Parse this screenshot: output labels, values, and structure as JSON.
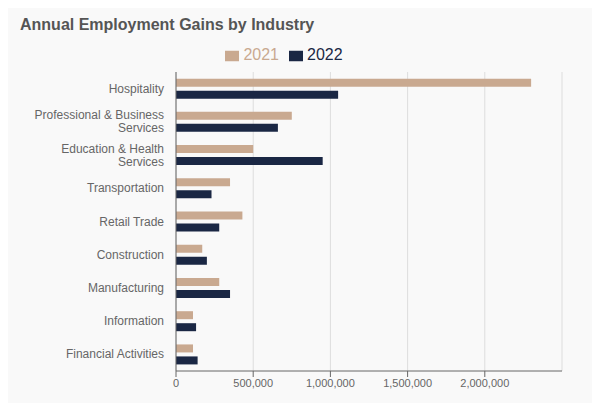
{
  "chart_data": {
    "type": "bar",
    "orientation": "horizontal",
    "title": "Annual Employment Gains by Industry",
    "categories": [
      "Hospitality",
      "Professional & Business\nServices",
      "Education & Health\nServices",
      "Transportation",
      "Retail Trade",
      "Construction",
      "Manufacturing",
      "Information",
      "Financial Activities"
    ],
    "series": [
      {
        "name": "2021",
        "color": "#c9a990",
        "values": [
          2300000,
          750000,
          500000,
          350000,
          430000,
          170000,
          280000,
          110000,
          110000
        ]
      },
      {
        "name": "2022",
        "color": "#1a2744",
        "values": [
          1050000,
          660000,
          950000,
          230000,
          280000,
          200000,
          350000,
          130000,
          140000
        ]
      }
    ],
    "xlim": [
      0,
      2500000
    ],
    "xticks": [
      0,
      {
        "value": 500000,
        "label": "500,000"
      },
      {
        "value": 1000000,
        "label": "1,000,000"
      },
      {
        "value": 1500000,
        "label": "1,500,000"
      },
      {
        "value": 2000000,
        "label": "2,000,000"
      }
    ],
    "grid": true,
    "legend": "top"
  }
}
